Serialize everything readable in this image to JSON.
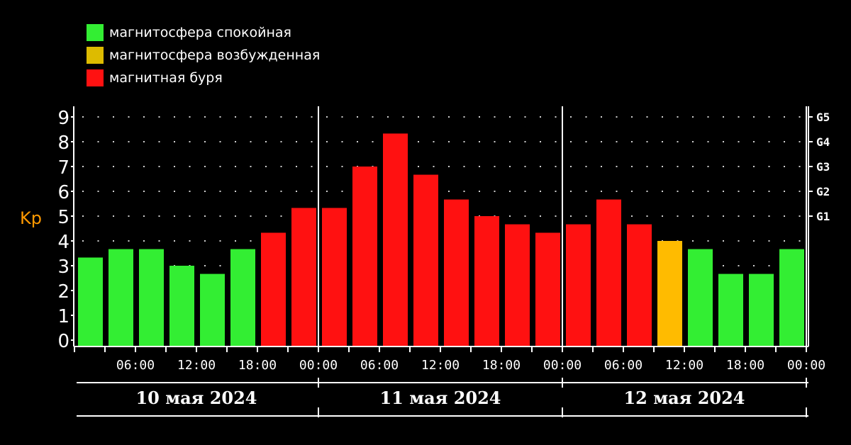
{
  "legend": [
    {
      "label": "магнитосфера спокойная",
      "color": "#33ee33"
    },
    {
      "label": "магнитосфера возбужденная",
      "color": "#ddbb00"
    },
    {
      "label": "магнитная буря",
      "color": "#ff1111"
    }
  ],
  "chart_data": {
    "type": "bar",
    "ylabel": "Kp",
    "ylim": [
      0,
      9
    ],
    "yticks": [
      "0",
      "1",
      "2",
      "3",
      "4",
      "5",
      "6",
      "7",
      "8",
      "9"
    ],
    "storm_levels": [
      {
        "label": "G5",
        "value": 9
      },
      {
        "label": "G4",
        "value": 8
      },
      {
        "label": "G3",
        "value": 7
      },
      {
        "label": "G2",
        "value": 6
      },
      {
        "label": "G1",
        "value": 5
      }
    ],
    "xtick_labels": [
      "06:00",
      "12:00",
      "18:00",
      "00:00",
      "06:00",
      "12:00",
      "18:00",
      "00:00",
      "06:00",
      "12:00",
      "18:00",
      "00:00"
    ],
    "days": [
      "10 мая 2024",
      "11 мая 2024",
      "12 мая 2024"
    ],
    "values": [
      3.33,
      3.67,
      3.67,
      3.0,
      2.67,
      3.67,
      4.33,
      5.33,
      5.33,
      7.0,
      8.33,
      6.67,
      5.67,
      5.0,
      4.67,
      4.33,
      4.67,
      5.67,
      4.67,
      4.0,
      3.67,
      2.67,
      2.67,
      3.67
    ],
    "colors": [
      "#33ee33",
      "#33ee33",
      "#33ee33",
      "#33ee33",
      "#33ee33",
      "#33ee33",
      "#ff1111",
      "#ff1111",
      "#ff1111",
      "#ff1111",
      "#ff1111",
      "#ff1111",
      "#ff1111",
      "#ff1111",
      "#ff1111",
      "#ff1111",
      "#ff1111",
      "#ff1111",
      "#ff1111",
      "#ffbb00",
      "#33ee33",
      "#33ee33",
      "#33ee33",
      "#33ee33"
    ],
    "ylabel_color": "#ff9900",
    "grid": "dotted"
  }
}
